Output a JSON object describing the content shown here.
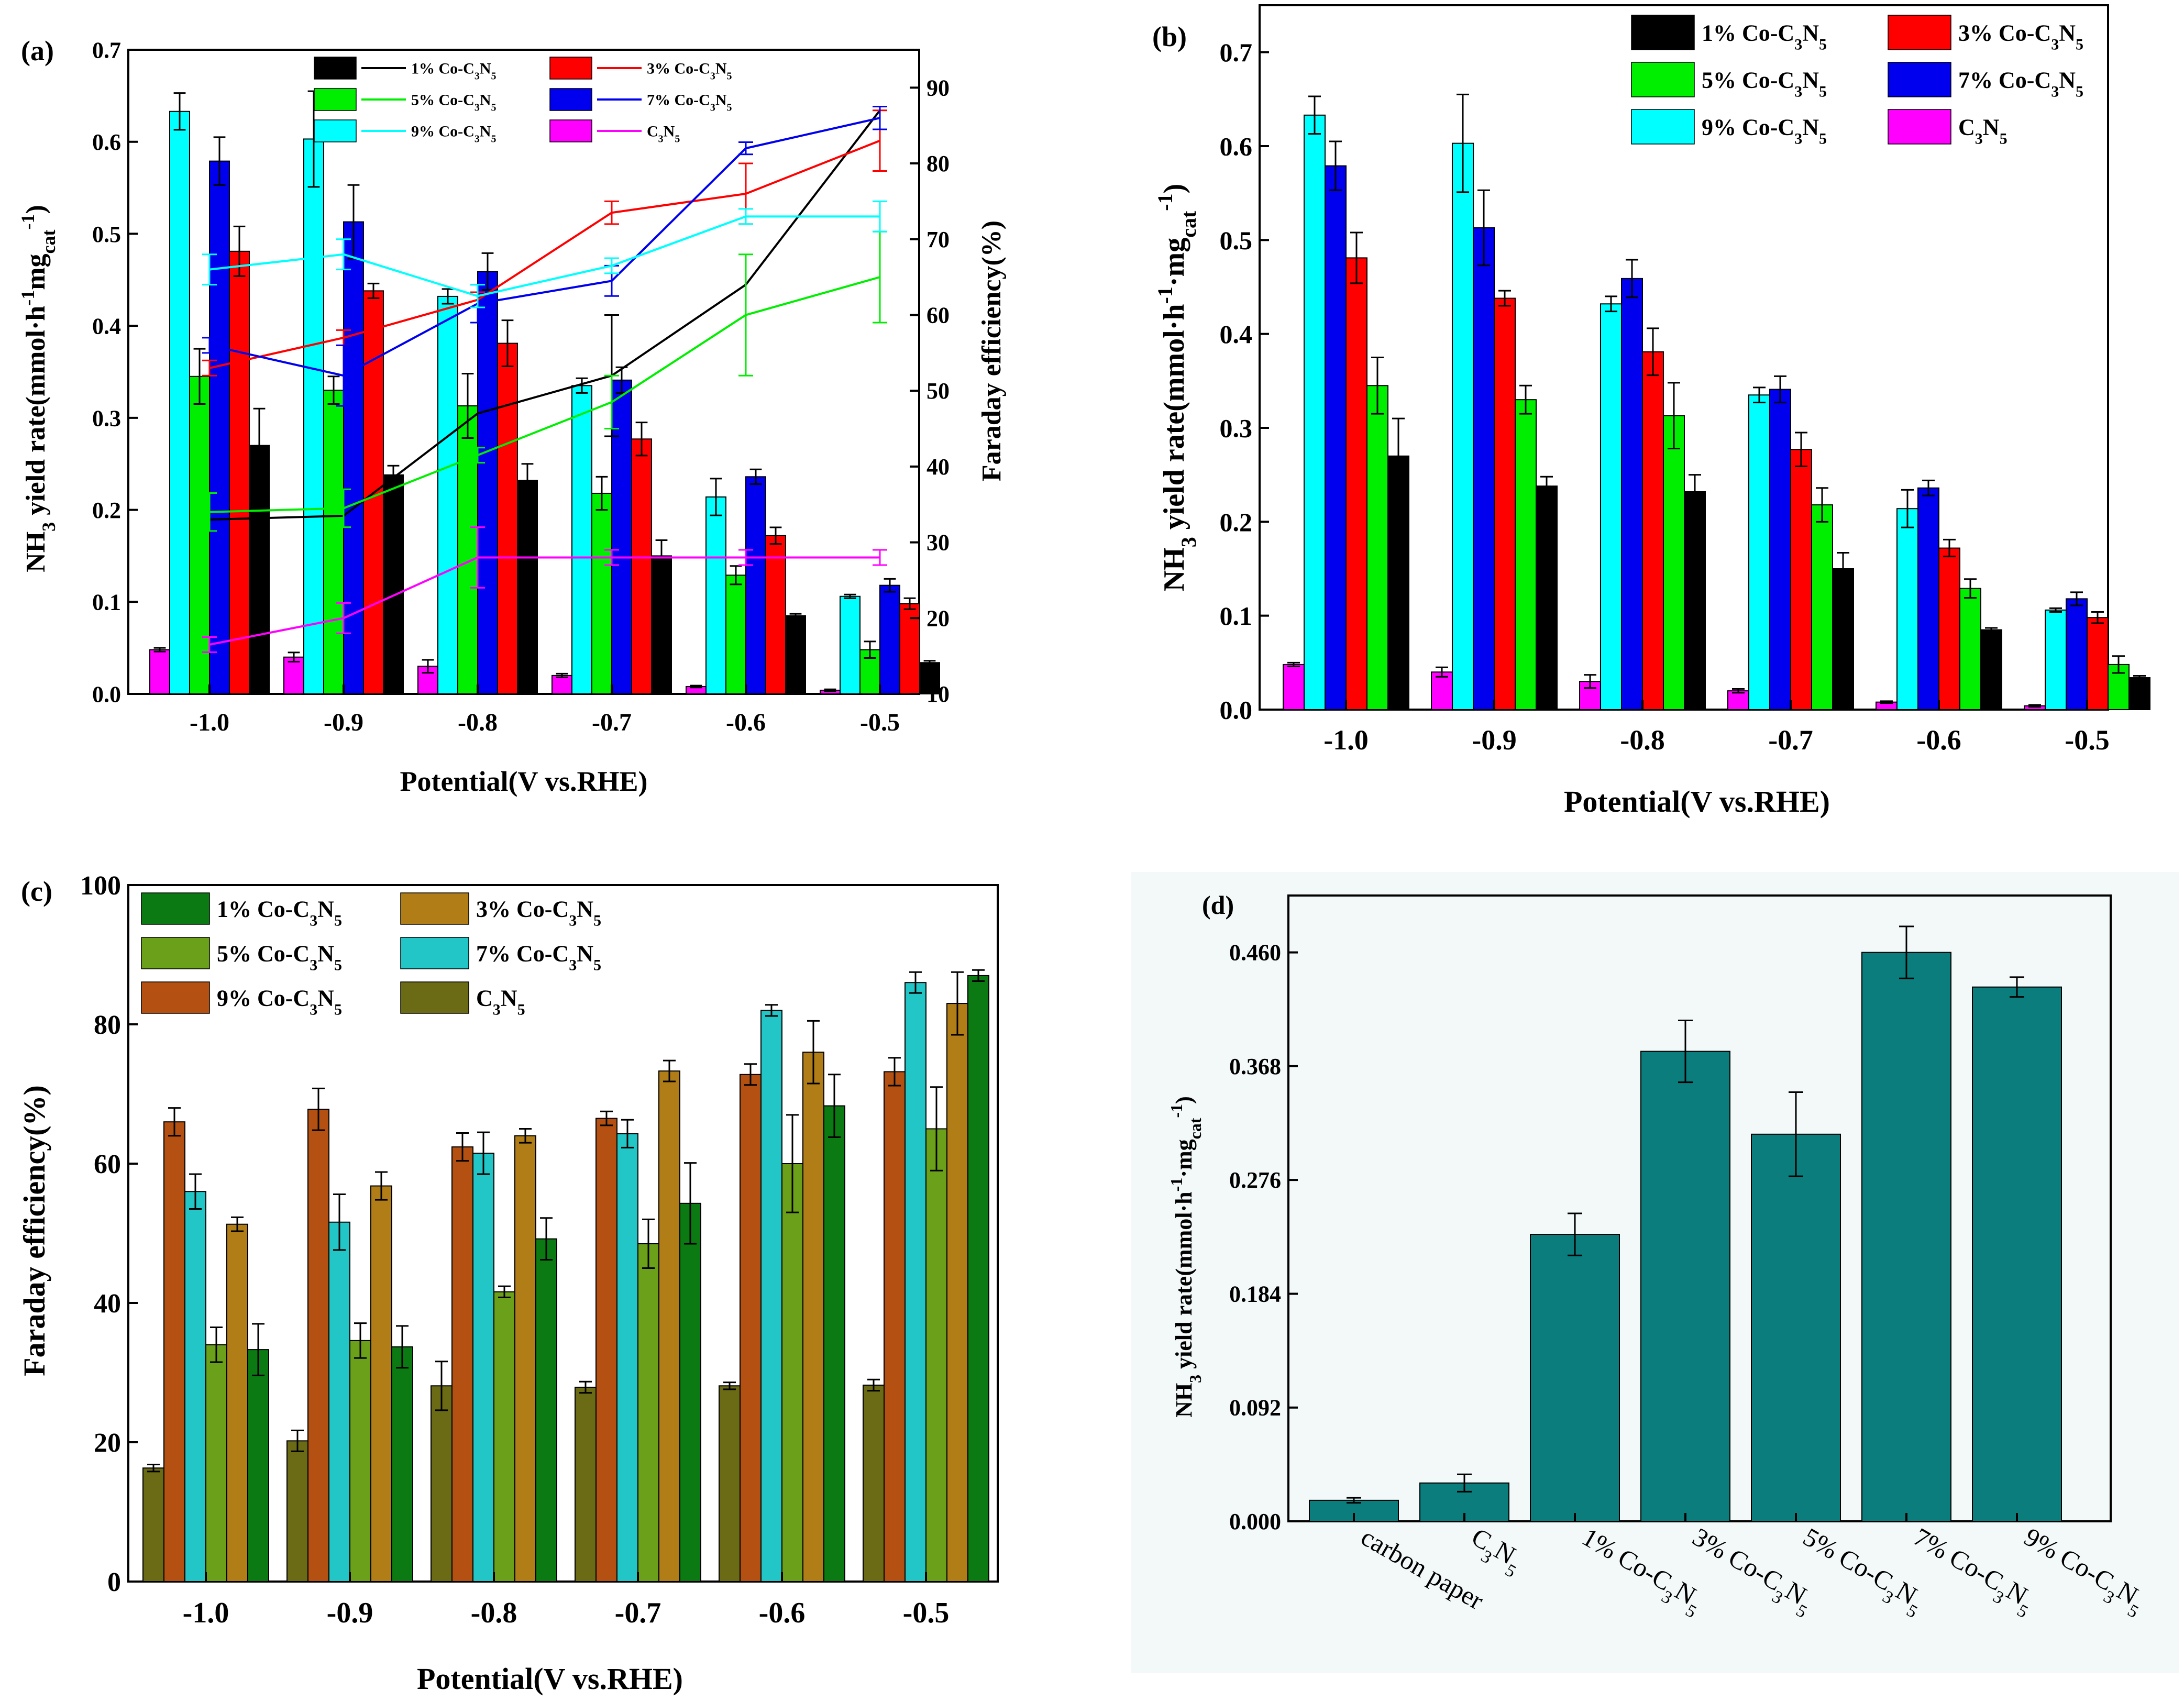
{
  "series_names": [
    "1% Co-C3N5",
    "3% Co-C3N5",
    "5% Co-C3N5",
    "7% Co-C3N5",
    "9% Co-C3N5",
    "C3N5"
  ],
  "colors_ab": {
    "1% Co-C3N5": "#000000",
    "3% Co-C3N5": "#ff0000",
    "5% Co-C3N5": "#00ee00",
    "7% Co-C3N5": "#0000ee",
    "9% Co-C3N5": "#00ffff",
    "C3N5": "#ff00ff"
  },
  "colors_c": {
    "1% Co-C3N5": "#0b7a13",
    "3% Co-C3N5": "#b07d17",
    "5% Co-C3N5": "#6ba01a",
    "7% Co-C3N5": "#22c6c6",
    "9% Co-C3N5": "#b45112",
    "C3N5": "#6b6b16"
  },
  "color_d": "#0b7d7d",
  "chart_data": [
    {
      "id": "a",
      "type": "bar+line",
      "panel_label": "(a)",
      "categories": [
        "-1.0",
        "-0.9",
        "-0.8",
        "-0.7",
        "-0.6",
        "-0.5"
      ],
      "xlabel": "Potential(V vs.RHE)",
      "ylabel": "NH3 yield rate(mmol·h-1mgcat-1)",
      "ylim": [
        0,
        0.7
      ],
      "yticks": [
        "0.0",
        "0.1",
        "0.2",
        "0.3",
        "0.4",
        "0.5",
        "0.6",
        "0.7"
      ],
      "y2label": "Faraday efficiency(%)",
      "y2lim": [
        10,
        95
      ],
      "y2ticks": [
        "10",
        "20",
        "30",
        "40",
        "50",
        "60",
        "70",
        "80",
        "90"
      ],
      "bar_order": [
        "C3N5",
        "9% Co-C3N5",
        "5% Co-C3N5",
        "7% Co-C3N5",
        "3% Co-C3N5",
        "1% Co-C3N5"
      ],
      "bars": {
        "C3N5": {
          "values": [
            0.048,
            0.04,
            0.03,
            0.02,
            0.008,
            0.004
          ],
          "err": [
            0.002,
            0.005,
            0.007,
            0.002,
            0.001,
            0.001
          ]
        },
        "9% Co-C3N5": {
          "values": [
            0.633,
            0.603,
            0.432,
            0.335,
            0.214,
            0.106
          ],
          "err": [
            0.02,
            0.052,
            0.008,
            0.008,
            0.02,
            0.002
          ]
        },
        "5% Co-C3N5": {
          "values": [
            0.345,
            0.33,
            0.313,
            0.218,
            0.129,
            0.048
          ],
          "err": [
            0.03,
            0.015,
            0.035,
            0.018,
            0.01,
            0.009
          ]
        },
        "7% Co-C3N5": {
          "values": [
            0.579,
            0.513,
            0.459,
            0.341,
            0.236,
            0.118
          ],
          "err": [
            0.026,
            0.04,
            0.02,
            0.014,
            0.008,
            0.007
          ]
        },
        "3% Co-C3N5": {
          "values": [
            0.481,
            0.438,
            0.381,
            0.277,
            0.172,
            0.098
          ],
          "err": [
            0.027,
            0.008,
            0.025,
            0.018,
            0.009,
            0.006
          ]
        },
        "1% Co-C3N5": {
          "values": [
            0.27,
            0.238,
            0.232,
            0.15,
            0.085,
            0.034
          ],
          "err": [
            0.04,
            0.01,
            0.018,
            0.017,
            0.002,
            0.002
          ]
        }
      },
      "lines": {
        "1% Co-C3N5": {
          "values": [
            33,
            33.5,
            47,
            52,
            64,
            87
          ],
          "err": [
            0,
            0,
            0,
            8,
            0,
            0
          ]
        },
        "3% Co-C3N5": {
          "values": [
            53,
            57,
            62,
            73.5,
            76,
            83
          ],
          "err": [
            1,
            1,
            1,
            1.5,
            4,
            4
          ]
        },
        "5% Co-C3N5": {
          "values": [
            34,
            34.5,
            41.5,
            48.5,
            60,
            65
          ],
          "err": [
            2.5,
            2.5,
            1,
            3.5,
            8,
            6
          ]
        },
        "7% Co-C3N5": {
          "values": [
            56,
            52,
            61.5,
            64.5,
            82,
            86
          ],
          "err": [
            1,
            4,
            2.5,
            2,
            0.8,
            1.5
          ]
        },
        "9% Co-C3N5": {
          "values": [
            66,
            68,
            62.5,
            66.5,
            73,
            73
          ],
          "err": [
            2,
            2,
            1.5,
            1,
            1,
            2
          ]
        },
        "C3N5": {
          "values": [
            16.5,
            20,
            28,
            28,
            28,
            28
          ],
          "err": [
            1,
            2,
            4,
            1,
            1,
            1
          ]
        }
      }
    },
    {
      "id": "b",
      "type": "bar",
      "panel_label": "(b)",
      "categories": [
        "-1.0",
        "-0.9",
        "-0.8",
        "-0.7",
        "-0.6",
        "-0.5"
      ],
      "xlabel": "Potential(V vs.RHE)",
      "ylabel": "NH3 yield rate(mmol·h-1·mgcat-1)",
      "ylim": [
        0,
        0.75
      ],
      "yticks": [
        "0.0",
        "0.1",
        "0.2",
        "0.3",
        "0.4",
        "0.5",
        "0.6",
        "0.7"
      ],
      "bar_order": [
        "C3N5",
        "9% Co-C3N5",
        "7% Co-C3N5",
        "3% Co-C3N5",
        "5% Co-C3N5",
        "1% Co-C3N5"
      ]
    },
    {
      "id": "c",
      "type": "bar",
      "panel_label": "(c)",
      "categories": [
        "-1.0",
        "-0.9",
        "-0.8",
        "-0.7",
        "-0.6",
        "-0.5"
      ],
      "xlabel": "Potential(V vs.RHE)",
      "ylabel": "Faraday efficiency(%)",
      "ylim": [
        0,
        100
      ],
      "yticks": [
        "0",
        "20",
        "40",
        "60",
        "80",
        "100"
      ],
      "bar_order": [
        "C3N5",
        "9% Co-C3N5",
        "7% Co-C3N5",
        "5% Co-C3N5",
        "3% Co-C3N5",
        "1% Co-C3N5"
      ],
      "bars": {
        "C3N5": {
          "values": [
            16.3,
            20.2,
            28.1,
            27.9,
            28.1,
            28.2
          ],
          "err": [
            0.5,
            1.5,
            3.5,
            0.8,
            0.5,
            0.8
          ]
        },
        "9% Co-C3N5": {
          "values": [
            66,
            67.8,
            62.4,
            66.5,
            72.8,
            73.2
          ],
          "err": [
            2,
            3,
            2,
            1,
            1.5,
            2
          ]
        },
        "7% Co-C3N5": {
          "values": [
            56,
            51.6,
            61.5,
            64.3,
            82,
            86
          ],
          "err": [
            2.5,
            4,
            3,
            2,
            0.8,
            1.5
          ]
        },
        "5% Co-C3N5": {
          "values": [
            34,
            34.6,
            41.6,
            48.5,
            60,
            65
          ],
          "err": [
            2.5,
            2.5,
            0.8,
            3.5,
            7,
            6
          ]
        },
        "3% Co-C3N5": {
          "values": [
            51.3,
            56.8,
            64,
            73.3,
            76,
            83
          ],
          "err": [
            1,
            2,
            1,
            1.5,
            4.5,
            4.5
          ]
        },
        "1% Co-C3N5": {
          "values": [
            33.3,
            33.7,
            49.2,
            54.3,
            68.3,
            87
          ],
          "err": [
            3.7,
            3,
            3,
            5.8,
            4.5,
            0.8
          ]
        }
      }
    },
    {
      "id": "d",
      "type": "bar",
      "panel_label": "(d)",
      "categories": [
        "carbon paper",
        "C3N5",
        "1% Co-C3N5",
        "3% Co-C3N5",
        "5% Co-C3N5",
        "7% Co-C3N5",
        "9% Co-C3N5"
      ],
      "values": [
        0.017,
        0.031,
        0.232,
        0.38,
        0.313,
        0.46,
        0.432
      ],
      "err": [
        0.002,
        0.007,
        0.017,
        0.025,
        0.034,
        0.021,
        0.008
      ],
      "ylabel": "NH3 yield rate(mmol·h-1·mgcat-1)",
      "ylim": [
        0,
        0.506
      ],
      "yticks": [
        "0.000",
        "0.092",
        "0.184",
        "0.276",
        "0.368",
        "0.460"
      ]
    }
  ]
}
